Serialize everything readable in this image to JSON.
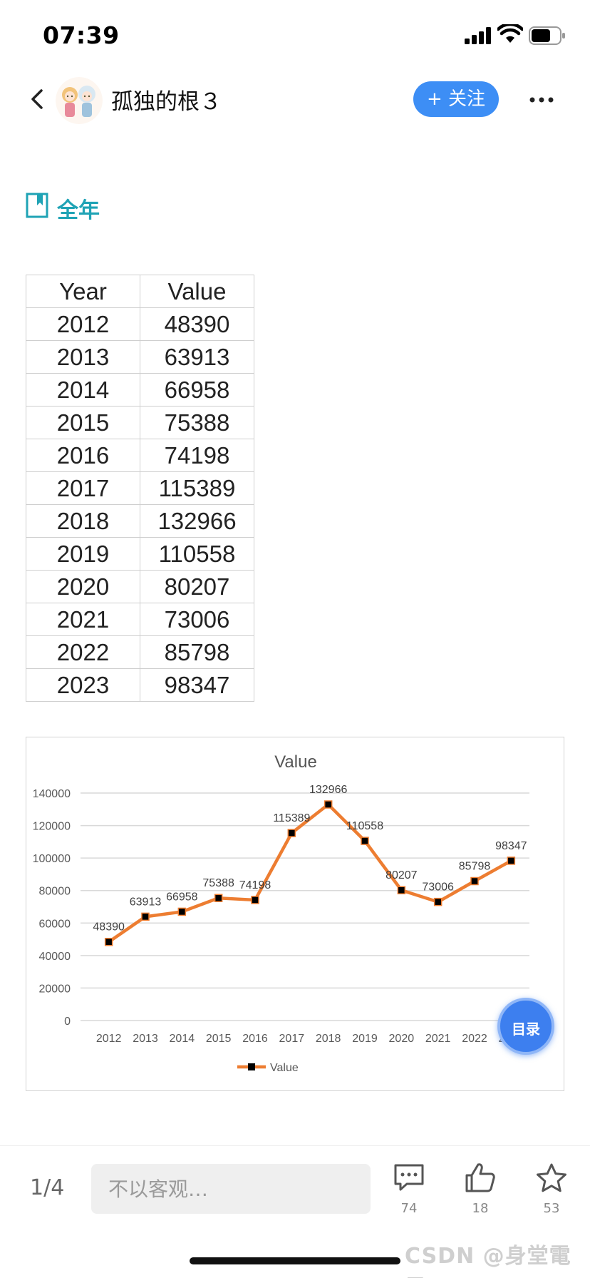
{
  "status_bar": {
    "time": "07:39"
  },
  "header": {
    "author_name": "孤独的根３",
    "follow_label": "+ 关注"
  },
  "section": {
    "title": "全年"
  },
  "table": {
    "headers": [
      "Year",
      "Value"
    ],
    "rows": [
      [
        "2012",
        "48390"
      ],
      [
        "2013",
        "63913"
      ],
      [
        "2014",
        "66958"
      ],
      [
        "2015",
        "75388"
      ],
      [
        "2016",
        "74198"
      ],
      [
        "2017",
        "115389"
      ],
      [
        "2018",
        "132966"
      ],
      [
        "2019",
        "110558"
      ],
      [
        "2020",
        "80207"
      ],
      [
        "2021",
        "73006"
      ],
      [
        "2022",
        "85798"
      ],
      [
        "2023",
        "98347"
      ]
    ]
  },
  "chart_data": {
    "type": "line",
    "title": "Value",
    "x": [
      "2012",
      "2013",
      "2014",
      "2015",
      "2016",
      "2017",
      "2018",
      "2019",
      "2020",
      "2021",
      "2022",
      "2023"
    ],
    "series": [
      {
        "name": "Value",
        "values": [
          48390,
          63913,
          66958,
          75388,
          74198,
          115389,
          132966,
          110558,
          80207,
          73006,
          85798,
          98347
        ]
      }
    ],
    "ylim": [
      0,
      140000
    ],
    "yticks": [
      "0",
      "20000",
      "40000",
      "60000",
      "80000",
      "100000",
      "120000",
      "140000"
    ],
    "grid": true,
    "legend": "bottom",
    "line_color": "#ed7d31",
    "marker_color": "#000000"
  },
  "toc_button": {
    "label": "目录"
  },
  "bottom_bar": {
    "page_indicator": "1/4",
    "comment_placeholder": "不以客观…",
    "comment_count": "74",
    "like_count": "18",
    "favorite_count": "53"
  },
  "watermark": "CSDN @身堂電子"
}
